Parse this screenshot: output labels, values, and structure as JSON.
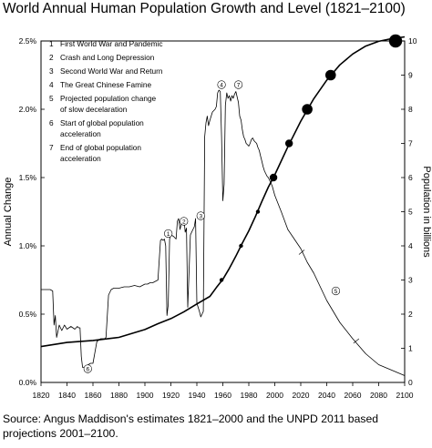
{
  "chart_data": {
    "type": "line",
    "title": "World Annual Human Population Growth and Level (1821–2100)",
    "source": "Source: Angus Maddison's estimates 1821–2000 and the UNPD 2011 based projections 2001–2100.",
    "xlabel": "",
    "xlim": [
      1820,
      2100
    ],
    "x_ticks": [
      1820,
      1840,
      1860,
      1880,
      1900,
      1920,
      1940,
      1960,
      1980,
      2000,
      2020,
      2040,
      2060,
      2080,
      2100
    ],
    "grid": false,
    "left_axis": {
      "label": "Annual Change",
      "ylim": [
        0,
        2.5
      ],
      "ticks": [
        0,
        0.5,
        1.0,
        1.5,
        2.0,
        2.5
      ],
      "tick_labels": [
        "0.0%",
        "0.5%",
        "1.0%",
        "1.5%",
        "2.0%",
        "2.5%"
      ]
    },
    "right_axis": {
      "label": "Population in billions",
      "ylim": [
        0,
        10
      ],
      "ticks": [
        0,
        1,
        2,
        3,
        4,
        5,
        6,
        7,
        8,
        9,
        10
      ],
      "tick_labels": [
        "0",
        "1",
        "2",
        "3",
        "4",
        "5",
        "6",
        "7",
        "8",
        "9",
        "10"
      ]
    },
    "series": [
      {
        "role": "annual-change",
        "axis": "left",
        "color": "#000000",
        "x": [
          1820,
          1824,
          1827,
          1829,
          1830,
          1831,
          1832,
          1834,
          1836,
          1838,
          1840,
          1843,
          1846,
          1848,
          1849,
          1850,
          1851,
          1852,
          1853,
          1855,
          1858,
          1860,
          1863,
          1866,
          1869,
          1870,
          1872,
          1874,
          1876,
          1878,
          1880,
          1884,
          1888,
          1892,
          1896,
          1900,
          1902,
          1904,
          1906,
          1908,
          1910,
          1912,
          1913,
          1914,
          1915,
          1916,
          1917,
          1918,
          1919,
          1920,
          1922,
          1924,
          1925,
          1926,
          1927,
          1928,
          1929,
          1930,
          1931,
          1932,
          1933,
          1935,
          1937,
          1938,
          1939,
          1940,
          1941,
          1942,
          1943,
          1944,
          1945,
          1946,
          1947,
          1948,
          1949,
          1950,
          1951,
          1952,
          1954,
          1955,
          1956,
          1957,
          1958,
          1959,
          1960,
          1961,
          1962,
          1963,
          1964,
          1965,
          1966,
          1967,
          1968,
          1969,
          1970,
          1971,
          1972,
          1973,
          1974,
          1975,
          1976,
          1977,
          1978,
          1979,
          1980,
          1981,
          1982,
          1983,
          1984,
          1985,
          1986,
          1987,
          1988,
          1989,
          1990,
          1991,
          1992,
          1993,
          1994,
          1995,
          1996,
          1998,
          2000,
          2005,
          2010,
          2015,
          2020,
          2025,
          2030,
          2040,
          2050,
          2060,
          2070,
          2080,
          2090,
          2100
        ],
        "y": [
          0.68,
          0.68,
          0.68,
          0.67,
          0.42,
          0.49,
          0.33,
          0.42,
          0.38,
          0.42,
          0.39,
          0.41,
          0.39,
          0.41,
          0.4,
          0.4,
          0.19,
          0.11,
          0.11,
          0.12,
          0.14,
          0.14,
          0.3,
          0.32,
          0.32,
          0.33,
          0.64,
          0.68,
          0.69,
          0.69,
          0.69,
          0.7,
          0.7,
          0.71,
          0.7,
          0.72,
          0.72,
          0.73,
          0.73,
          0.74,
          0.75,
          1.04,
          1.05,
          1.04,
          1.05,
          1.0,
          0.49,
          0.57,
          1.05,
          1.08,
          1.07,
          1.05,
          1.18,
          1.2,
          1.12,
          1.16,
          1.19,
          1.2,
          1.1,
          1.13,
          0.55,
          1.08,
          1.12,
          1.14,
          1.2,
          0.58,
          0.55,
          0.52,
          0.48,
          0.5,
          0.52,
          1.8,
          1.9,
          1.95,
          1.88,
          1.92,
          1.95,
          1.98,
          2.0,
          2.02,
          2.12,
          2.14,
          2.13,
          1.8,
          1.33,
          1.45,
          2.03,
          2.12,
          2.08,
          2.1,
          2.06,
          2.1,
          2.08,
          2.11,
          2.13,
          2.09,
          2.05,
          1.95,
          1.92,
          1.85,
          1.8,
          1.78,
          1.75,
          1.74,
          1.73,
          1.75,
          1.78,
          1.79,
          1.77,
          1.76,
          1.75,
          1.72,
          1.7,
          1.66,
          1.62,
          1.58,
          1.55,
          1.53,
          1.51,
          1.5,
          1.48,
          1.44,
          1.37,
          1.25,
          1.12,
          1.05,
          0.98,
          0.88,
          0.8,
          0.6,
          0.44,
          0.32,
          0.21,
          0.13,
          0.09,
          0.05
        ]
      },
      {
        "role": "population",
        "axis": "right",
        "color": "#000000",
        "x": [
          1820,
          1840,
          1860,
          1880,
          1900,
          1910,
          1920,
          1930,
          1940,
          1950,
          1955,
          1960,
          1965,
          1970,
          1975,
          1980,
          1985,
          1990,
          1995,
          2000,
          2010,
          2020,
          2030,
          2040,
          2050,
          2060,
          2070,
          2080,
          2090,
          2100
        ],
        "y": [
          1.05,
          1.17,
          1.23,
          1.32,
          1.55,
          1.72,
          1.87,
          2.07,
          2.3,
          2.52,
          2.78,
          3.02,
          3.34,
          3.7,
          4.08,
          4.44,
          4.85,
          5.3,
          5.72,
          6.08,
          6.9,
          7.65,
          8.31,
          8.85,
          9.3,
          9.62,
          9.85,
          9.99,
          10.07,
          10.12
        ]
      }
    ],
    "population_markers": [
      {
        "year": 1959,
        "billions": 3,
        "size": "small"
      },
      {
        "year": 1974,
        "billions": 4,
        "size": "small"
      },
      {
        "year": 1987,
        "billions": 5,
        "size": "small"
      },
      {
        "year": 1999,
        "billions": 6,
        "size": "medium"
      },
      {
        "year": 2011,
        "billions": 7,
        "size": "medium"
      },
      {
        "year": 2025,
        "billions": 8,
        "size": "large"
      },
      {
        "year": 2043,
        "billions": 9,
        "size": "large"
      },
      {
        "year": 2093,
        "billions": 10,
        "size": "xlarge"
      }
    ],
    "legend": [
      {
        "num": "1",
        "lines": [
          "First World War and Pandemic"
        ]
      },
      {
        "num": "2",
        "lines": [
          "Crash and Long Depression"
        ]
      },
      {
        "num": "3",
        "lines": [
          "Second World War and Return"
        ]
      },
      {
        "num": "4",
        "lines": [
          "The Great Chinese Famine"
        ]
      },
      {
        "num": "5",
        "lines": [
          "Projected population change",
          "of slow decelaration"
        ]
      },
      {
        "num": "6",
        "lines": [
          "Start of global population",
          "acceleration"
        ]
      },
      {
        "num": "7",
        "lines": [
          "End of global population",
          "acceleration"
        ]
      }
    ],
    "legend_placement": "top-left",
    "annotations": [
      {
        "num": "1",
        "year": 1918,
        "value": 1.09
      },
      {
        "num": "2",
        "year": 1930,
        "value": 1.18
      },
      {
        "num": "3",
        "year": 1943,
        "value": 1.22
      },
      {
        "num": "4",
        "year": 1959,
        "value": 2.18
      },
      {
        "num": "5",
        "year": 2047,
        "value": 0.67
      },
      {
        "num": "6",
        "year": 1856,
        "value": 0.1
      },
      {
        "num": "7",
        "year": 1972,
        "value": 2.18
      }
    ]
  }
}
